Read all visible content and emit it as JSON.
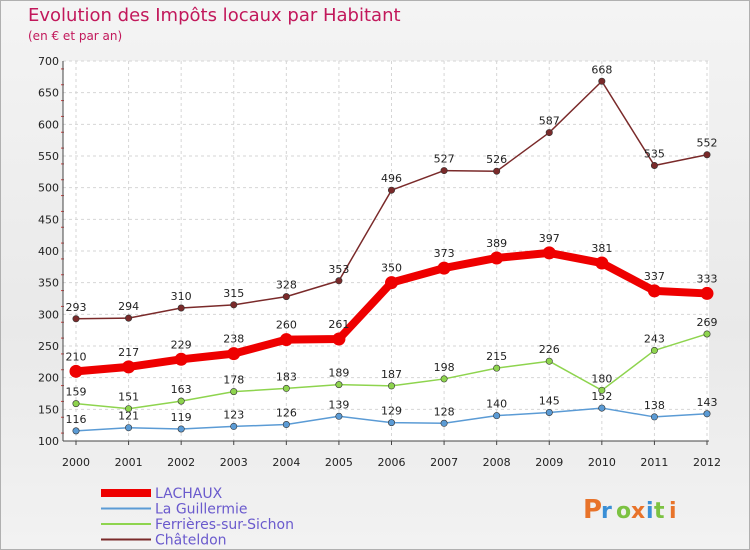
{
  "header": {
    "title": "Evolution des Impôts locaux par Habitant",
    "subtitle": "(en € et par an)"
  },
  "logo": {
    "text": "Proxiti"
  },
  "chart_data": {
    "type": "line",
    "title": "Evolution des Impôts locaux par Habitant",
    "subtitle": "(en € et par an)",
    "xlabel": "",
    "ylabel": "",
    "x": [
      "2000",
      "2001",
      "2002",
      "2003",
      "2004",
      "2005",
      "2006",
      "2007",
      "2008",
      "2009",
      "2010",
      "2011",
      "2012"
    ],
    "yticks": [
      100,
      150,
      200,
      250,
      300,
      350,
      400,
      450,
      500,
      550,
      600,
      650,
      700
    ],
    "ylim": [
      100,
      700
    ],
    "grid": true,
    "legend_position": "bottom-left",
    "series": [
      {
        "name": "LACHAUX",
        "color": "#ee0000",
        "emphasis": true,
        "values": [
          210,
          217,
          229,
          238,
          260,
          261,
          350,
          373,
          389,
          397,
          381,
          337,
          333
        ]
      },
      {
        "name": "La Guillermie",
        "color": "#5b9bd5",
        "emphasis": false,
        "values": [
          116,
          121,
          119,
          123,
          126,
          139,
          129,
          128,
          140,
          145,
          152,
          138,
          143
        ]
      },
      {
        "name": "Ferrières-sur-Sichon",
        "color": "#8ed44e",
        "emphasis": false,
        "values": [
          159,
          151,
          163,
          178,
          183,
          189,
          187,
          198,
          215,
          226,
          180,
          243,
          269
        ]
      },
      {
        "name": "Châteldon",
        "color": "#7a2a2a",
        "emphasis": false,
        "values": [
          293,
          294,
          310,
          315,
          328,
          353,
          496,
          527,
          526,
          587,
          668,
          535,
          552
        ]
      }
    ]
  }
}
